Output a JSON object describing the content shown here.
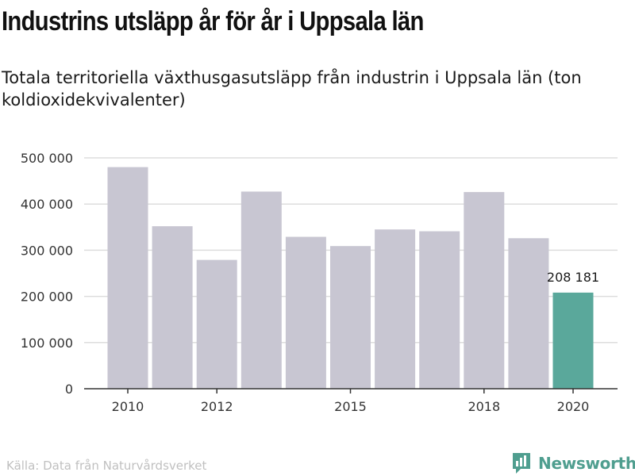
{
  "chart_data": {
    "type": "bar",
    "title": "Industrins utsläpp år för år i Uppsala län",
    "subtitle": "Totala territoriella växthusgasutsläpp från industrin i Uppsala län (ton koldioxidekvivalenter)",
    "categories": [
      "2010",
      "2011",
      "2012",
      "2013",
      "2014",
      "2015",
      "2016",
      "2017",
      "2018",
      "2019",
      "2020"
    ],
    "x_tick_labels": [
      "2010",
      "2012",
      "2015",
      "2018",
      "2020"
    ],
    "values": [
      480000,
      352000,
      279000,
      427000,
      329000,
      309000,
      345000,
      341000,
      426000,
      326000,
      208181
    ],
    "y_ticks": [
      "0",
      "100 000",
      "200 000",
      "300 000",
      "400 000",
      "500 000"
    ],
    "y_tick_values": [
      0,
      100000,
      200000,
      300000,
      400000,
      500000
    ],
    "ylim": [
      0,
      500000
    ],
    "highlight": {
      "index": 10,
      "label": "208 181"
    },
    "grid": true,
    "colors": {
      "bar": "#c8c6d2",
      "highlight": "#5aa89b",
      "grid": "#dddddd",
      "axis": "#333333"
    },
    "xlabel": "",
    "ylabel": ""
  },
  "footer": {
    "source": "Källa: Data från Naturvårdsverket",
    "brand": "Newsworthy",
    "brand_icon": "bar-chart-bubble-icon"
  }
}
